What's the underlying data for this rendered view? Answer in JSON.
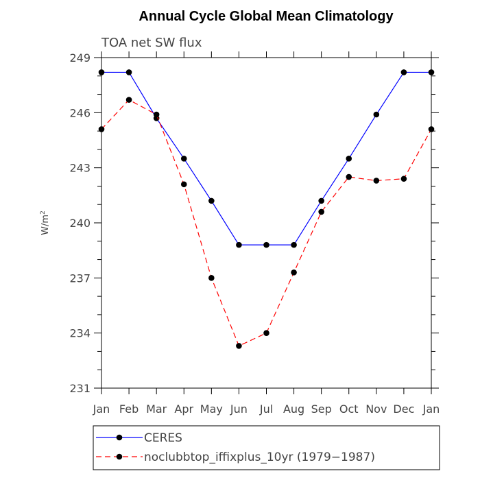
{
  "chart_data": {
    "type": "line",
    "title": "Annual Cycle Global Mean Climatology",
    "subtitle": "TOA net SW flux",
    "ylabel_text": "W/m",
    "ylabel_sup": "2",
    "xlabel": "",
    "categories": [
      "Jan",
      "Feb",
      "Mar",
      "Apr",
      "May",
      "Jun",
      "Jul",
      "Aug",
      "Sep",
      "Oct",
      "Nov",
      "Dec",
      "Jan"
    ],
    "ylim": [
      231,
      249
    ],
    "yticks": [
      231,
      234,
      237,
      240,
      243,
      246,
      249
    ],
    "grid": false,
    "legend_position": "bottom",
    "series": [
      {
        "name": "CERES",
        "color": "#0000ff",
        "dash": "solid",
        "values": [
          248.2,
          248.2,
          245.7,
          243.5,
          241.2,
          238.8,
          238.8,
          238.8,
          241.2,
          243.5,
          245.9,
          248.2,
          248.2
        ]
      },
      {
        "name": "noclubbtop_iffixplus_10yr (1979−1987)",
        "color": "#ff0000",
        "dash": "dashed",
        "values": [
          245.1,
          246.7,
          245.9,
          242.1,
          237.0,
          233.3,
          234.0,
          237.3,
          240.6,
          242.5,
          242.3,
          242.4,
          245.1
        ]
      }
    ]
  }
}
